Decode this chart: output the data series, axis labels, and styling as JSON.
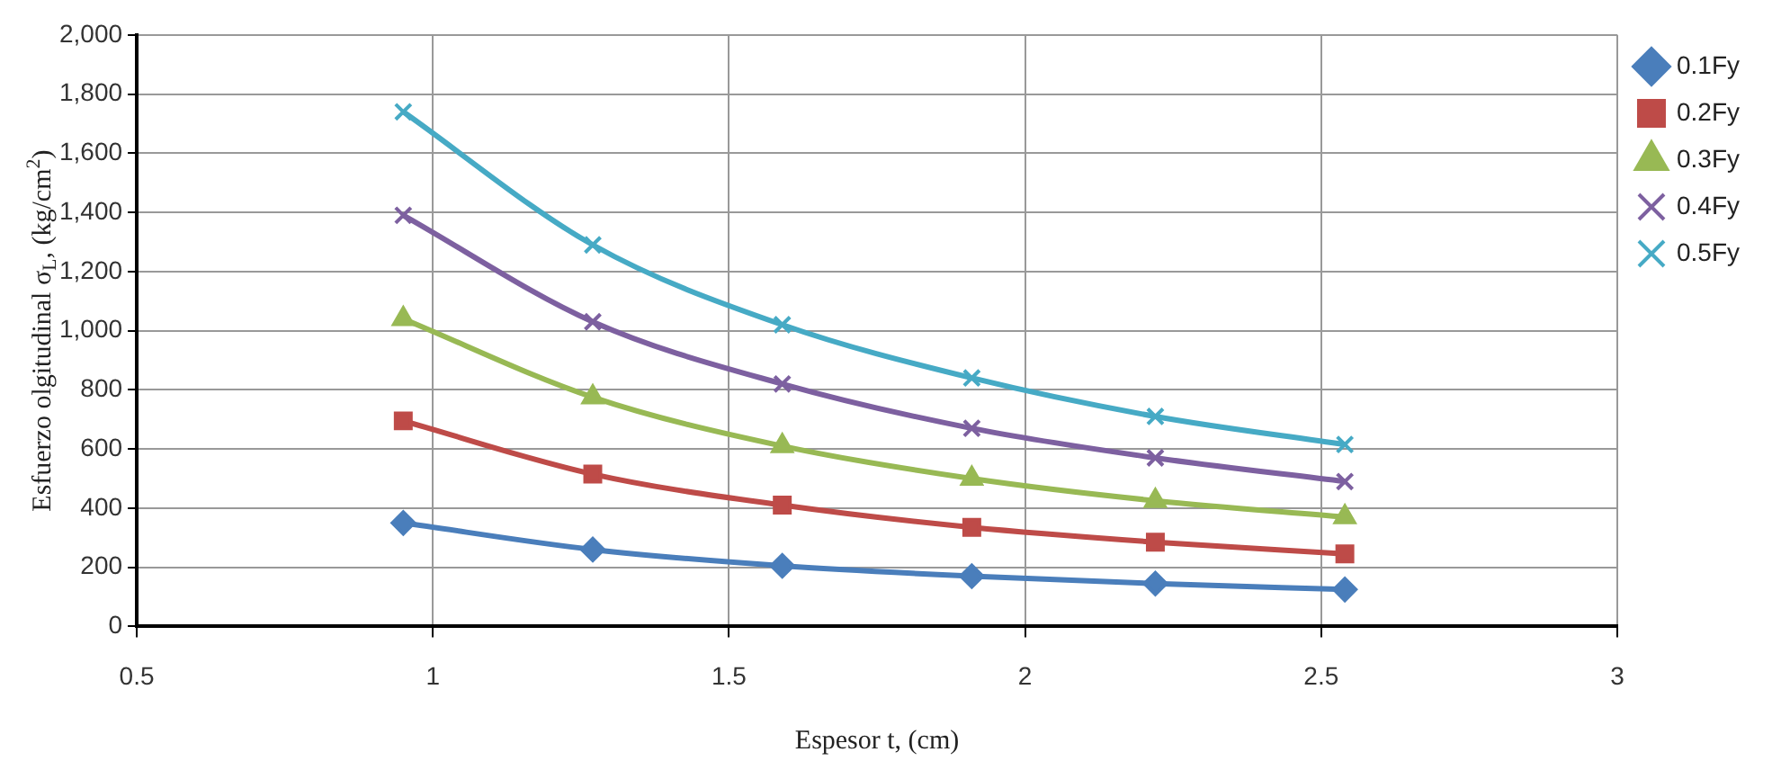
{
  "chart_data": {
    "type": "line",
    "xlabel": "Espesor t, (cm)",
    "ylabel": "Esfuerzo olgitudinal σ$_{L}$, (kg/cm$^{2}$)",
    "x": [
      0.95,
      1.27,
      1.59,
      1.91,
      2.22,
      2.54
    ],
    "series": [
      {
        "name": "0.1Fy",
        "color": "#4a7ebb",
        "marker": "diamond",
        "values": [
          350,
          260,
          205,
          170,
          145,
          125
        ]
      },
      {
        "name": "0.2Fy",
        "color": "#be4b48",
        "marker": "square",
        "values": [
          695,
          515,
          410,
          335,
          285,
          245
        ]
      },
      {
        "name": "0.3Fy",
        "color": "#98b954",
        "marker": "triangle",
        "values": [
          1040,
          775,
          610,
          500,
          425,
          370
        ]
      },
      {
        "name": "0.4Fy",
        "color": "#7d60a0",
        "marker": "cross",
        "values": [
          1390,
          1030,
          820,
          670,
          570,
          490
        ]
      },
      {
        "name": "0.5Fy",
        "color": "#46aac5",
        "marker": "cross",
        "values": [
          1740,
          1290,
          1020,
          840,
          710,
          615
        ]
      }
    ],
    "xlim": [
      0.5,
      3
    ],
    "xticks": [
      0.5,
      1,
      1.5,
      2,
      2.5,
      3
    ],
    "ylim": [
      0,
      2000
    ],
    "yticks": [
      0,
      200,
      400,
      600,
      800,
      {
        "value": 1000,
        "label": "1,000"
      },
      {
        "value": 1200,
        "label": "1,200"
      },
      {
        "value": 1400,
        "label": "1,400"
      },
      {
        "value": 1600,
        "label": "1,600"
      },
      {
        "value": 1800,
        "label": "1,800"
      },
      {
        "value": 2000,
        "label": "2,000"
      }
    ],
    "grid": true,
    "legend": "right",
    "line_style": "solid"
  }
}
